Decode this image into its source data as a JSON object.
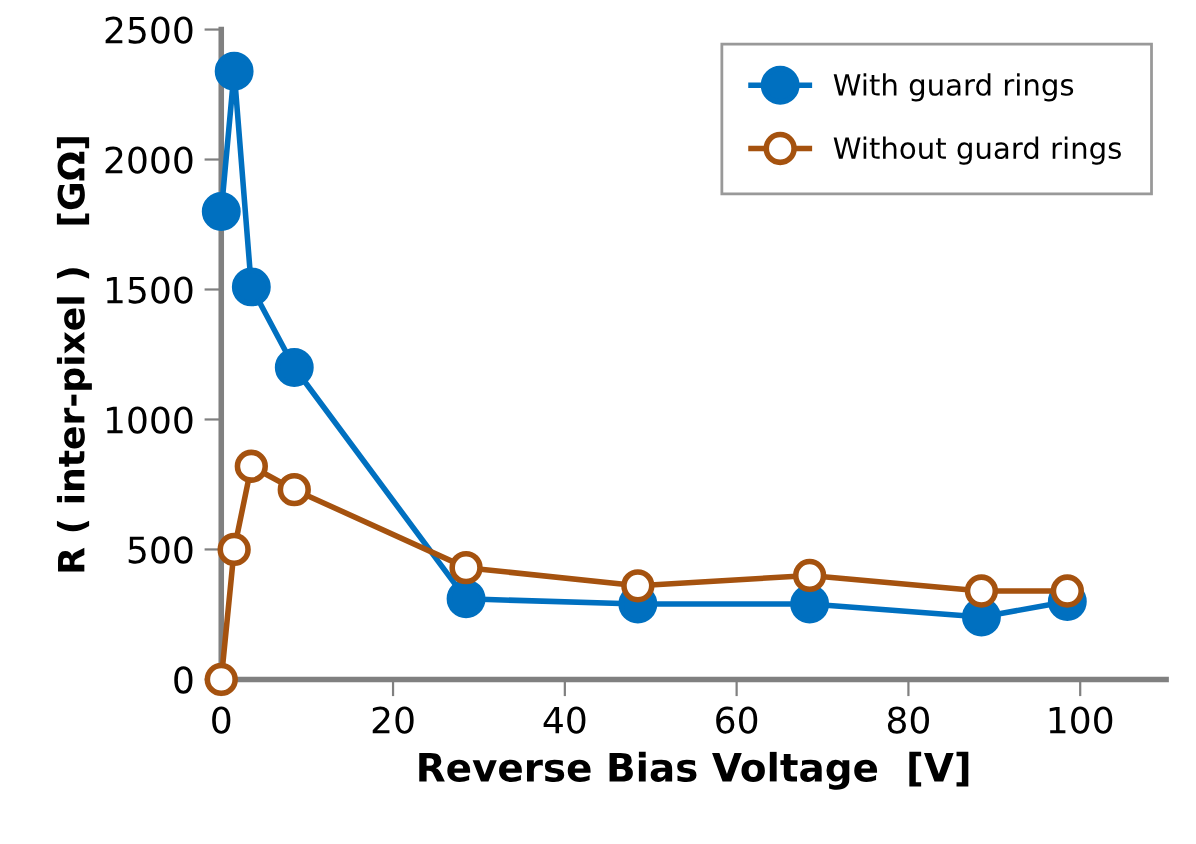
{
  "chart_data": {
    "type": "line",
    "xlabel": "Reverse Bias Voltage  [V]",
    "ylabel": "R ( inter-pixel )   [GΩ]",
    "series": [
      {
        "name": "With guard rings",
        "color": "#0070c0",
        "marker": "circle",
        "x": [
          0,
          1.5,
          3.5,
          8.5,
          28.5,
          48.5,
          68.5,
          88.5,
          98.5
        ],
        "values": [
          1800,
          2340,
          1510,
          1200,
          310,
          290,
          290,
          240,
          300
        ]
      },
      {
        "name": "Without guard rings",
        "color": "#a5520f",
        "marker": "open circle",
        "x": [
          0,
          1.5,
          3.5,
          8.5,
          28.5,
          48.5,
          68.5,
          88.5,
          98.5
        ],
        "values": [
          0,
          500,
          820,
          730,
          430,
          360,
          400,
          340,
          340
        ]
      }
    ],
    "xlim": [
      0,
      110
    ],
    "ylim": [
      0,
      2500
    ],
    "xticks": [
      0,
      20,
      40,
      60,
      80,
      100
    ],
    "yticks": [
      0,
      500,
      1000,
      1500,
      2000,
      2500
    ],
    "grid": false,
    "legend": "top right"
  }
}
